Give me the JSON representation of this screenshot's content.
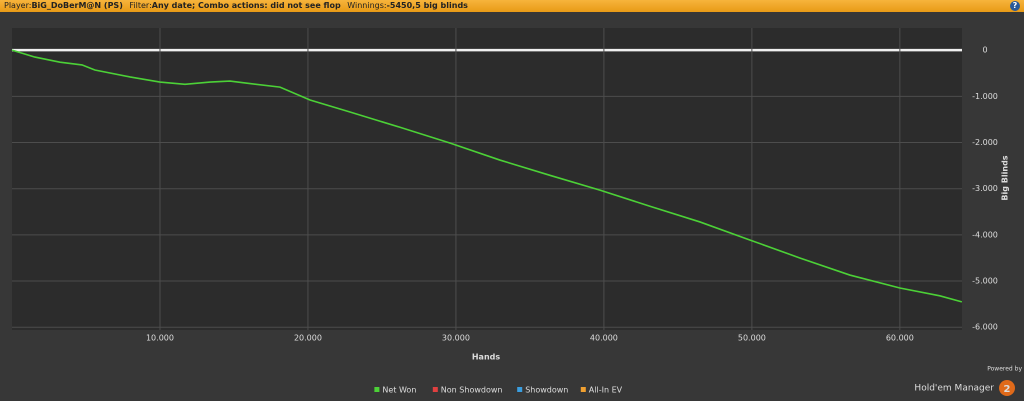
{
  "header": {
    "player_label": "Player:",
    "player": "BiG_DoBerM@N (PS)",
    "filter_label": "Filter:",
    "filter": "Any date; Combo actions: did not see flop",
    "winnings_label": "Winnings:",
    "winnings": "-5450,5 big blinds",
    "help": "?"
  },
  "chart_data": {
    "type": "line",
    "x_label": "Hands",
    "y_label": "Big Blinds",
    "xlim": [
      0,
      64200
    ],
    "ylim": [
      -6060,
      480
    ],
    "xticks": [
      {
        "value": 10000,
        "label": "10.000"
      },
      {
        "value": 20000,
        "label": "20.000"
      },
      {
        "value": 30000,
        "label": "30.000"
      },
      {
        "value": 40000,
        "label": "40.000"
      },
      {
        "value": 50000,
        "label": "50.000"
      },
      {
        "value": 60000,
        "label": "60.000"
      }
    ],
    "yticks": [
      0,
      {
        "value": -1000,
        "label": "-1.000"
      },
      {
        "value": -2000,
        "label": "-2.000"
      },
      {
        "value": -3000,
        "label": "-3.000"
      },
      {
        "value": -4000,
        "label": "-4.000"
      },
      {
        "value": -5000,
        "label": "-5.000"
      },
      {
        "value": -6000,
        "label": "-6.000"
      }
    ],
    "grid": true,
    "x": [
      0,
      1550,
      3240,
      4730,
      5600,
      7970,
      10000,
      11690,
      13380,
      14730,
      15740,
      18110,
      20140,
      22840,
      26220,
      29590,
      32970,
      36350,
      39730,
      43110,
      46490,
      49860,
      53240,
      56620,
      60000,
      62700,
      64190
    ],
    "series": [
      {
        "name": "Net Won",
        "color": "#4cd137",
        "values": [
          0,
          -150,
          -260,
          -320,
          -430,
          -580,
          -690,
          -740,
          -690,
          -670,
          -710,
          -800,
          -1080,
          -1340,
          -1670,
          -2010,
          -2380,
          -2710,
          -3030,
          -3380,
          -3720,
          -4110,
          -4500,
          -4870,
          -5150,
          -5320,
          -5450.5
        ]
      },
      {
        "name": "Non Showdown",
        "color": "#e04040"
      },
      {
        "name": "Showdown",
        "color": "#3a9ee0"
      },
      {
        "name": "All-In EV",
        "color": "#f0a030"
      }
    ],
    "brand_small": "Powered by",
    "brand": "Hold'em Manager",
    "brand_version": "2"
  }
}
